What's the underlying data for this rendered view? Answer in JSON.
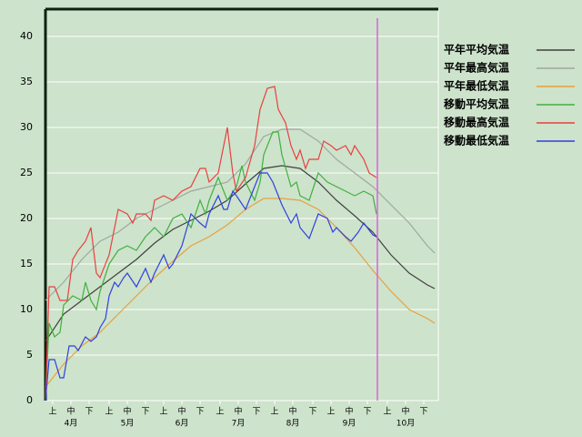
{
  "chart_data": {
    "type": "line",
    "xlim": [
      0,
      216
    ],
    "ylim": [
      0,
      43
    ],
    "yticks": [
      0,
      5,
      10,
      15,
      20,
      25,
      30,
      35,
      40
    ],
    "xticks": [
      {
        "value": 4,
        "label": "上"
      },
      {
        "value": 14,
        "label": "中"
      },
      {
        "value": 24,
        "label": "下"
      },
      {
        "value": 35,
        "label": "上"
      },
      {
        "value": 45,
        "label": "中"
      },
      {
        "value": 55,
        "label": "下"
      },
      {
        "value": 65,
        "label": "上"
      },
      {
        "value": 75,
        "label": "中"
      },
      {
        "value": 85,
        "label": "下"
      },
      {
        "value": 96,
        "label": "上"
      },
      {
        "value": 106,
        "label": "中"
      },
      {
        "value": 116,
        "label": "下"
      },
      {
        "value": 126,
        "label": "上"
      },
      {
        "value": 136,
        "label": "中"
      },
      {
        "value": 147,
        "label": "下"
      },
      {
        "value": 157,
        "label": "上"
      },
      {
        "value": 167,
        "label": "中"
      },
      {
        "value": 177,
        "label": "下"
      },
      {
        "value": 188,
        "label": "上"
      },
      {
        "value": 198,
        "label": "中"
      },
      {
        "value": 208,
        "label": "下"
      }
    ],
    "month_ticks": [
      {
        "value": 14,
        "label": "4月"
      },
      {
        "value": 45,
        "label": "5月"
      },
      {
        "value": 75,
        "label": "6月"
      },
      {
        "value": 106,
        "label": "7月"
      },
      {
        "value": 136,
        "label": "8月"
      },
      {
        "value": 167,
        "label": "9月"
      },
      {
        "value": 198,
        "label": "10月"
      }
    ],
    "grid": true,
    "marker_x": 182.5,
    "marker_color": "#e060e0",
    "series": [
      {
        "name": "平年平均気温",
        "color": "#404040",
        "x": [
          0,
          10,
          20,
          30,
          40,
          50,
          60,
          70,
          80,
          90,
          100,
          110,
          120,
          130,
          140,
          150,
          160,
          170,
          180,
          190,
          200,
          210,
          214
        ],
        "values": [
          6.5,
          9.5,
          11,
          12.5,
          14,
          15.5,
          17.3,
          18.8,
          19.8,
          20.8,
          22,
          23.8,
          25.5,
          25.8,
          25.5,
          24,
          22,
          20.3,
          18.5,
          16,
          14,
          12.7,
          12.3
        ]
      },
      {
        "name": "平年最高気温",
        "color": "#a0a8a0",
        "x": [
          0,
          10,
          20,
          30,
          40,
          50,
          60,
          70,
          80,
          90,
          100,
          110,
          120,
          130,
          140,
          150,
          160,
          170,
          180,
          190,
          200,
          210,
          214
        ],
        "values": [
          11,
          13,
          15.5,
          17.5,
          18.5,
          20,
          21,
          22,
          23,
          23.5,
          24,
          26,
          29,
          29.8,
          29.8,
          28.5,
          26.5,
          25,
          23.5,
          21.5,
          19.5,
          17,
          16.2
        ]
      },
      {
        "name": "平年最低気温",
        "color": "#e8a040",
        "x": [
          0,
          10,
          20,
          30,
          40,
          50,
          60,
          70,
          80,
          90,
          100,
          110,
          120,
          130,
          140,
          150,
          160,
          170,
          180,
          190,
          200,
          210,
          214
        ],
        "values": [
          1.5,
          4,
          6,
          7.5,
          9.5,
          11.5,
          13.5,
          15.3,
          17,
          18,
          19.3,
          21,
          22.2,
          22.2,
          22,
          21,
          19,
          16.8,
          14.3,
          12,
          10,
          9,
          8.5
        ]
      },
      {
        "name": "移動平均気温",
        "color": "#40b040",
        "x": [
          0,
          2,
          5,
          8,
          10,
          15,
          20,
          22,
          25,
          28,
          30,
          35,
          40,
          45,
          50,
          55,
          60,
          65,
          70,
          75,
          80,
          85,
          88,
          90,
          95,
          100,
          105,
          108,
          110,
          115,
          118,
          120,
          125,
          128,
          130,
          135,
          138,
          140,
          145,
          150,
          155,
          160,
          165,
          170,
          175,
          180,
          182
        ],
        "values": [
          0,
          8.5,
          7,
          7.5,
          10.5,
          11.5,
          11,
          13,
          11,
          10,
          12,
          15,
          16.5,
          17,
          16.5,
          18,
          19,
          18,
          20,
          20.5,
          19,
          22,
          20.5,
          22,
          24.5,
          22,
          23.5,
          25.8,
          24,
          22,
          24,
          27,
          29.5,
          29.5,
          27,
          23.5,
          24,
          22.5,
          22,
          25,
          24,
          23.5,
          23,
          22.5,
          23,
          22.5,
          20.5
        ]
      },
      {
        "name": "移動最高気温",
        "color": "#e84040",
        "x": [
          0,
          2,
          5,
          8,
          12,
          15,
          18,
          22,
          25,
          28,
          30,
          35,
          38,
          40,
          45,
          48,
          50,
          55,
          58,
          60,
          65,
          70,
          75,
          80,
          85,
          88,
          90,
          95,
          100,
          103,
          105,
          110,
          115,
          118,
          122,
          126,
          128,
          132,
          135,
          138,
          140,
          143,
          145,
          150,
          153,
          157,
          160,
          165,
          168,
          170,
          175,
          178,
          182
        ],
        "values": [
          0,
          12.5,
          12.5,
          11,
          11,
          15.5,
          16.5,
          17.5,
          19,
          14,
          13.5,
          16,
          19,
          21,
          20.5,
          19.5,
          20.5,
          20.5,
          19.8,
          22,
          22.5,
          22,
          23,
          23.5,
          25.5,
          25.5,
          24,
          25,
          30,
          25,
          23,
          24.5,
          28,
          32,
          34.3,
          34.5,
          32,
          30.5,
          28,
          26.5,
          27.5,
          25.5,
          26.5,
          26.5,
          28.5,
          28,
          27.5,
          28,
          27,
          28,
          26.5,
          25,
          24.5
        ]
      },
      {
        "name": "移動最低気温",
        "color": "#3040e0",
        "x": [
          0,
          2,
          5,
          8,
          10,
          13,
          16,
          18,
          22,
          25,
          28,
          30,
          33,
          35,
          38,
          40,
          43,
          45,
          50,
          55,
          58,
          60,
          65,
          68,
          70,
          75,
          80,
          85,
          88,
          90,
          95,
          98,
          100,
          103,
          105,
          110,
          115,
          118,
          122,
          125,
          130,
          135,
          138,
          140,
          145,
          150,
          155,
          158,
          160,
          165,
          168,
          172,
          175,
          180,
          182
        ],
        "values": [
          0,
          4.5,
          4.5,
          2.5,
          2.5,
          6,
          6,
          5.5,
          7,
          6.5,
          7,
          8,
          9,
          11.5,
          13,
          12.5,
          13.5,
          14,
          12.5,
          14.5,
          13,
          14,
          16,
          14.5,
          15,
          17,
          20.5,
          19.5,
          19,
          20.5,
          22.5,
          21,
          21,
          23,
          22.5,
          21,
          23.5,
          25,
          25,
          24,
          21.5,
          19.5,
          20.5,
          19,
          17.8,
          20.5,
          20,
          18.5,
          19,
          18,
          17.5,
          18.5,
          19.5,
          18.2,
          18
        ]
      }
    ]
  }
}
